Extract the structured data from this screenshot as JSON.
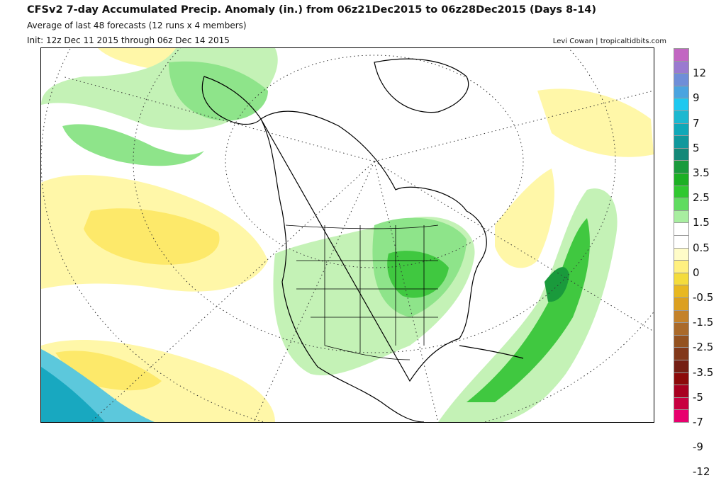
{
  "header": {
    "title": "CFSv2 7-day Accumulated Precip. Anomaly (in.) from 06z21Dec2015 to 06z28Dec2015 (Days 8-14)",
    "subtitle": "Average of last 48 forecasts (12 runs x 4 members)",
    "init": "Init: 12z Dec 11 2015 through 06z Dec 14 2015",
    "credit": "Levi Cowan | tropicaltidbits.com"
  },
  "map": {
    "region": "North America",
    "projection": "polar stereographic",
    "ocean_color": "#ffffff",
    "coastline_color": "#000000"
  },
  "colorbar": {
    "unit": "in.",
    "segments": [
      {
        "color": "#c266c2"
      },
      {
        "color": "#9a7ad0"
      },
      {
        "color": "#6f8ed8"
      },
      {
        "color": "#4aa4e0"
      },
      {
        "color": "#1ec8f0"
      },
      {
        "color": "#1cb8d0"
      },
      {
        "color": "#10a8b8"
      },
      {
        "color": "#10989c"
      },
      {
        "color": "#148878"
      },
      {
        "color": "#1a9a3c"
      },
      {
        "color": "#1cb024"
      },
      {
        "color": "#30c830"
      },
      {
        "color": "#60dc60"
      },
      {
        "color": "#a8eea0"
      },
      {
        "color": "#ffffff"
      },
      {
        "color": "#ffffff"
      },
      {
        "color": "#fffcc8"
      },
      {
        "color": "#fff080"
      },
      {
        "color": "#f4dc3c"
      },
      {
        "color": "#e8b820"
      },
      {
        "color": "#dca020"
      },
      {
        "color": "#c4822a"
      },
      {
        "color": "#aa6a2a"
      },
      {
        "color": "#945220"
      },
      {
        "color": "#82381a"
      },
      {
        "color": "#741e14"
      },
      {
        "color": "#8c0a0a"
      },
      {
        "color": "#a80020"
      },
      {
        "color": "#c80040"
      },
      {
        "color": "#e8006e"
      }
    ],
    "ticks": [
      {
        "label": "12",
        "index": 2
      },
      {
        "label": "9",
        "index": 4
      },
      {
        "label": "7",
        "index": 6
      },
      {
        "label": "5",
        "index": 8
      },
      {
        "label": "3.5",
        "index": 10
      },
      {
        "label": "2.5",
        "index": 12
      },
      {
        "label": "1.5",
        "index": 14
      },
      {
        "label": "0.5",
        "index": 16
      },
      {
        "label": "0",
        "index": 18
      },
      {
        "label": "-0.5",
        "index": 20
      },
      {
        "label": "-1.5",
        "index": 22
      },
      {
        "label": "-2.5",
        "index": 24
      },
      {
        "label": "-3.5",
        "index": 26
      },
      {
        "label": "-5",
        "index": 28
      },
      {
        "label": "-7",
        "index": 30
      },
      {
        "label": "-9",
        "index": 32
      },
      {
        "label": "-12",
        "index": 34
      }
    ]
  }
}
